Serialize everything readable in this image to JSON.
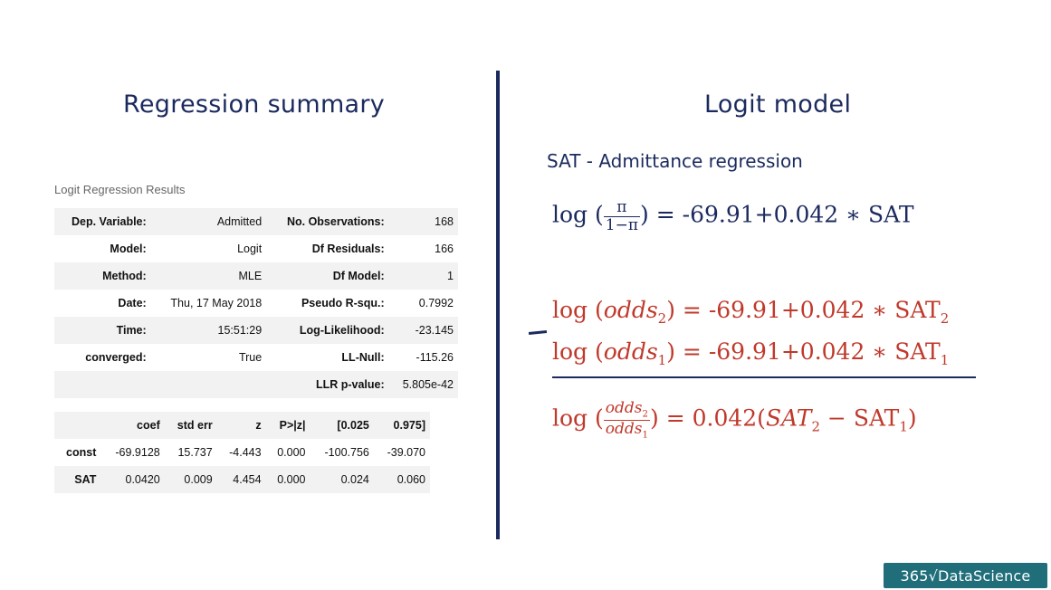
{
  "headings": {
    "left": "Regression summary",
    "right": "Logit model"
  },
  "results": {
    "caption": "Logit Regression Results",
    "rows": [
      [
        "Dep. Variable:",
        "Admitted",
        "No. Observations:",
        "168"
      ],
      [
        "Model:",
        "Logit",
        "Df Residuals:",
        "166"
      ],
      [
        "Method:",
        "MLE",
        "Df Model:",
        "1"
      ],
      [
        "Date:",
        "Thu, 17 May 2018",
        "Pseudo R-squ.:",
        "0.7992"
      ],
      [
        "Time:",
        "15:51:29",
        "Log-Likelihood:",
        "-23.145"
      ],
      [
        "converged:",
        "True",
        "LL-Null:",
        "-115.26"
      ],
      [
        "",
        "",
        "LLR p-value:",
        "5.805e-42"
      ]
    ]
  },
  "coefficients": {
    "headers": [
      "",
      "coef",
      "std err",
      "z",
      "P>|z|",
      "[0.025",
      "0.975]"
    ],
    "rows": [
      [
        "const",
        "-69.9128",
        "15.737",
        "-4.443",
        "0.000",
        "-100.756",
        "-39.070"
      ],
      [
        "SAT",
        "0.0420",
        "0.009",
        "4.454",
        "0.000",
        "0.024",
        "0.060"
      ]
    ]
  },
  "model": {
    "subtitle": "SAT - Admittance regression",
    "eq1": {
      "log": "log",
      "num": "π",
      "den": "1−π",
      "rhs": " = -69.91+0.042 ∗ SAT"
    },
    "eq2": {
      "log": "log",
      "odds": "odds",
      "sub": "2",
      "rhs_pre": " = -69.91+0.042 ∗ SAT",
      "rhs_sub": "2"
    },
    "eq3": {
      "log": "log",
      "odds": "odds",
      "sub": "1",
      "rhs_pre": " = -69.91+0.042 ∗ SAT",
      "rhs_sub": "1"
    },
    "eq4": {
      "log": "log",
      "num_odds": "odds",
      "num_sub": "2",
      "den_odds": "odds",
      "den_sub": "1",
      "rhs_pre": " = 0.042(",
      "sat_var": "SAT",
      "sat_sub2": "2",
      "minus": " − SAT",
      "sat_sub1": "1",
      "close": ")"
    }
  },
  "logo": {
    "text": "365√DataScience"
  },
  "colors": {
    "navy": "#1b2a5e",
    "red": "#c0392b",
    "logo_bg": "#1f6e7a"
  }
}
